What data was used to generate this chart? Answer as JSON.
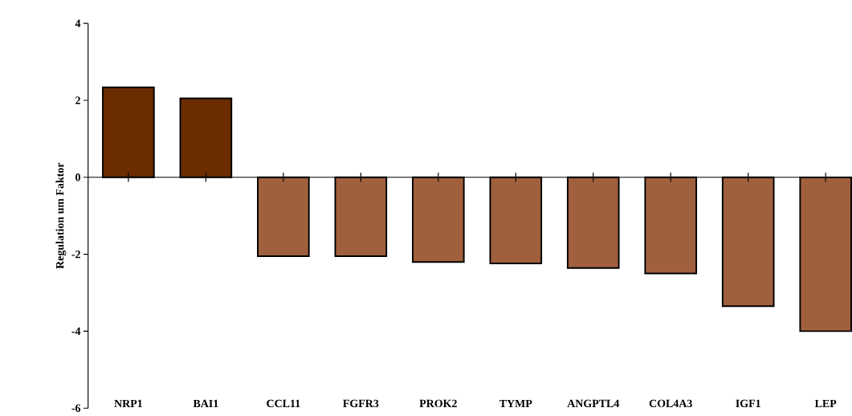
{
  "chart_data": {
    "type": "bar",
    "ylabel": "Regulation um Faktor",
    "categories": [
      "NRP1",
      "BAI1",
      "CCL11",
      "FGFR3",
      "PROK2",
      "TYMP",
      "ANGPTL4",
      "COL4A3",
      "IGF1",
      "LEP"
    ],
    "values": [
      2.34,
      2.05,
      -2.05,
      -2.05,
      -2.2,
      -2.24,
      -2.36,
      -2.5,
      -3.35,
      -4.0
    ],
    "colors": [
      "#6b2c00",
      "#6b2c00",
      "#a0603e",
      "#a0603e",
      "#a0603e",
      "#a0603e",
      "#a0603e",
      "#a0603e",
      "#a0603e",
      "#a0603e"
    ],
    "ylim": [
      -6,
      4
    ],
    "yticks": [
      -6,
      -4,
      -2,
      0,
      2,
      4
    ]
  }
}
